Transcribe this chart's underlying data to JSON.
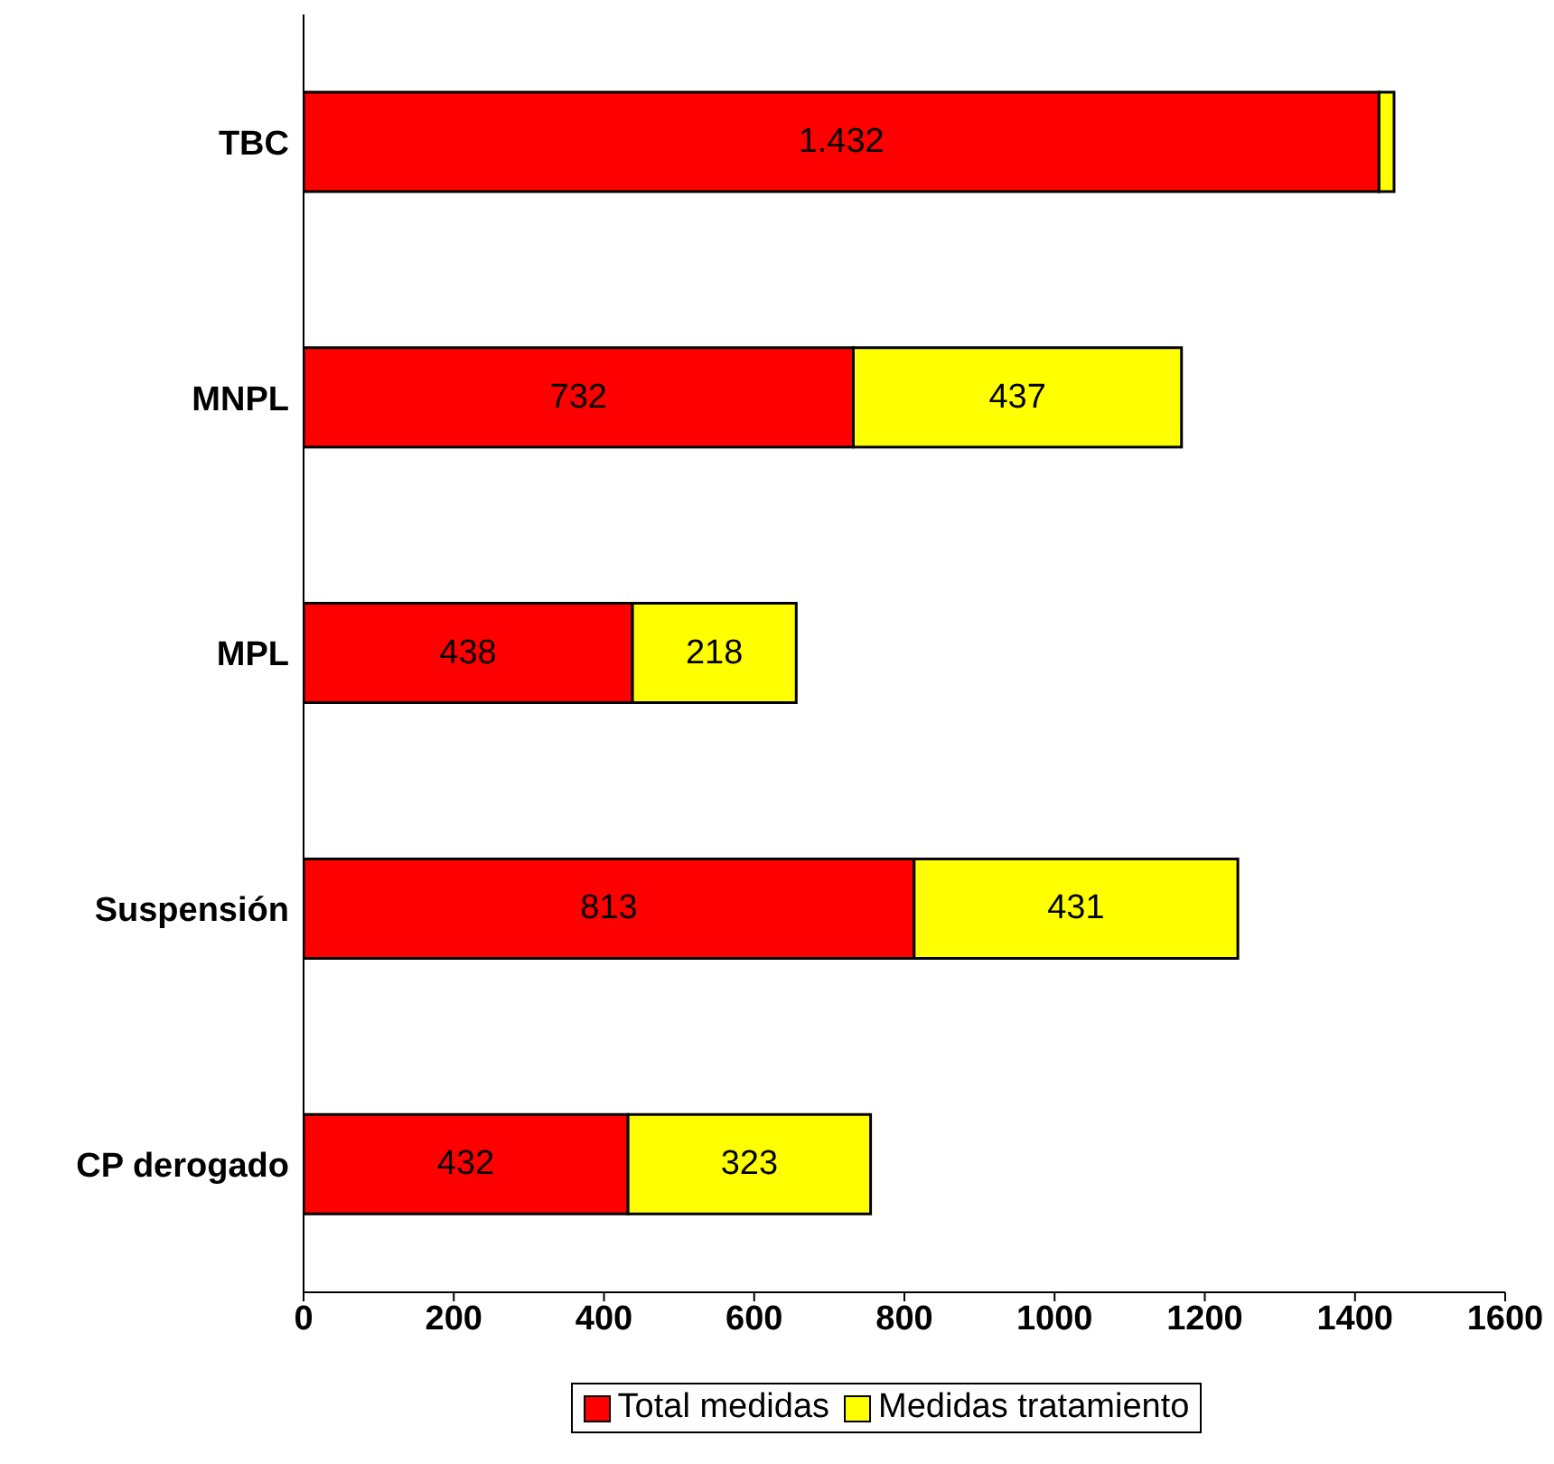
{
  "chart_data": {
    "type": "bar",
    "orientation": "horizontal",
    "stacked": true,
    "categories": [
      "TBC",
      "MNPL",
      "MPL",
      "Suspensión",
      "CP derogado"
    ],
    "series": [
      {
        "name": "Total medidas",
        "color": "#ff0000",
        "values": [
          1432,
          732,
          438,
          813,
          432
        ],
        "value_labels": [
          "1.432",
          "732",
          "438",
          "813",
          "432"
        ]
      },
      {
        "name": "Medidas tratamiento",
        "color": "#ffff00",
        "values": [
          20,
          437,
          218,
          431,
          323
        ],
        "value_labels": [
          null,
          "437",
          "218",
          "431",
          "323"
        ]
      }
    ],
    "xlim": [
      0,
      1600
    ],
    "xticks": [
      0,
      200,
      400,
      600,
      800,
      1000,
      1200,
      1400,
      1600
    ],
    "grid": false,
    "legend": "bottom"
  }
}
